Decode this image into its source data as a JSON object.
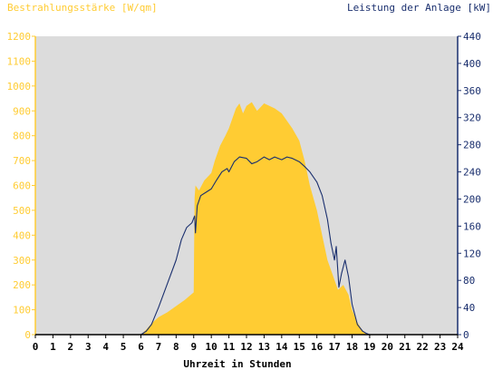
{
  "chart_data": {
    "type": "area",
    "left_axis_title": "Bestrahlungsstärke [W/qm]",
    "right_axis_title": "Leistung der Anlage [kW]",
    "xlabel": "Uhrzeit in Stunden",
    "x_ticks": [
      "0",
      "1",
      "2",
      "3",
      "4",
      "5",
      "6",
      "7",
      "8",
      "9",
      "10",
      "11",
      "12",
      "13",
      "14",
      "15",
      "16",
      "17",
      "18",
      "19",
      "20",
      "21",
      "22",
      "23",
      "24"
    ],
    "xlim": [
      0,
      24
    ],
    "ylim_left": [
      0,
      1200
    ],
    "y_ticks_left": [
      "0",
      "100",
      "200",
      "300",
      "400",
      "500",
      "600",
      "700",
      "800",
      "900",
      "1000",
      "1100",
      "1200"
    ],
    "ylim_right": [
      0,
      440
    ],
    "y_ticks_right": [
      "0",
      "40",
      "80",
      "120",
      "160",
      "200",
      "240",
      "280",
      "320",
      "360",
      "400",
      "440"
    ],
    "grid": false,
    "colors": {
      "irradiance": "#ffcc33",
      "power": "#1a2f6e",
      "plot_background": "#dcdcdc",
      "left_axis": "#ffcc33",
      "right_axis": "#1a2f6e"
    },
    "series": [
      {
        "axis": "left",
        "style": "filled-area",
        "x": [
          0,
          6.0,
          6.3,
          6.6,
          7.0,
          7.5,
          8.0,
          8.5,
          9.0,
          9.05,
          9.1,
          9.3,
          9.6,
          10.0,
          10.2,
          10.5,
          10.8,
          11.0,
          11.2,
          11.4,
          11.6,
          11.8,
          12.0,
          12.3,
          12.6,
          13.0,
          13.3,
          13.6,
          14.0,
          14.3,
          14.6,
          15.0,
          15.3,
          15.6,
          16.0,
          16.3,
          16.6,
          17.0,
          17.2,
          17.5,
          17.8,
          18.0,
          18.3,
          18.6,
          18.8,
          19.0,
          24
        ],
        "values": [
          0,
          0,
          20,
          45,
          70,
          90,
          115,
          140,
          170,
          550,
          600,
          580,
          620,
          650,
          700,
          760,
          800,
          830,
          870,
          910,
          930,
          890,
          920,
          935,
          900,
          930,
          920,
          910,
          890,
          860,
          830,
          780,
          700,
          600,
          500,
          400,
          300,
          220,
          180,
          200,
          160,
          100,
          50,
          15,
          5,
          0,
          0
        ]
      },
      {
        "axis": "right",
        "style": "line",
        "x": [
          0,
          6.0,
          6.3,
          6.6,
          7.0,
          7.5,
          8.0,
          8.3,
          8.6,
          8.9,
          9.05,
          9.1,
          9.2,
          9.4,
          9.7,
          10.0,
          10.3,
          10.6,
          10.9,
          11.0,
          11.3,
          11.6,
          12.0,
          12.3,
          12.6,
          13.0,
          13.3,
          13.6,
          14.0,
          14.3,
          14.6,
          15.0,
          15.3,
          15.6,
          16.0,
          16.3,
          16.6,
          16.8,
          17.0,
          17.1,
          17.25,
          17.4,
          17.6,
          17.8,
          18.0,
          18.3,
          18.6,
          18.8,
          19.0,
          24
        ],
        "values": [
          0,
          0,
          5,
          15,
          40,
          75,
          110,
          140,
          158,
          165,
          175,
          150,
          190,
          205,
          210,
          215,
          228,
          240,
          245,
          240,
          255,
          262,
          260,
          252,
          255,
          262,
          258,
          262,
          258,
          262,
          260,
          255,
          248,
          240,
          225,
          205,
          170,
          135,
          110,
          130,
          70,
          90,
          110,
          85,
          45,
          15,
          5,
          2,
          0,
          0
        ]
      }
    ]
  }
}
